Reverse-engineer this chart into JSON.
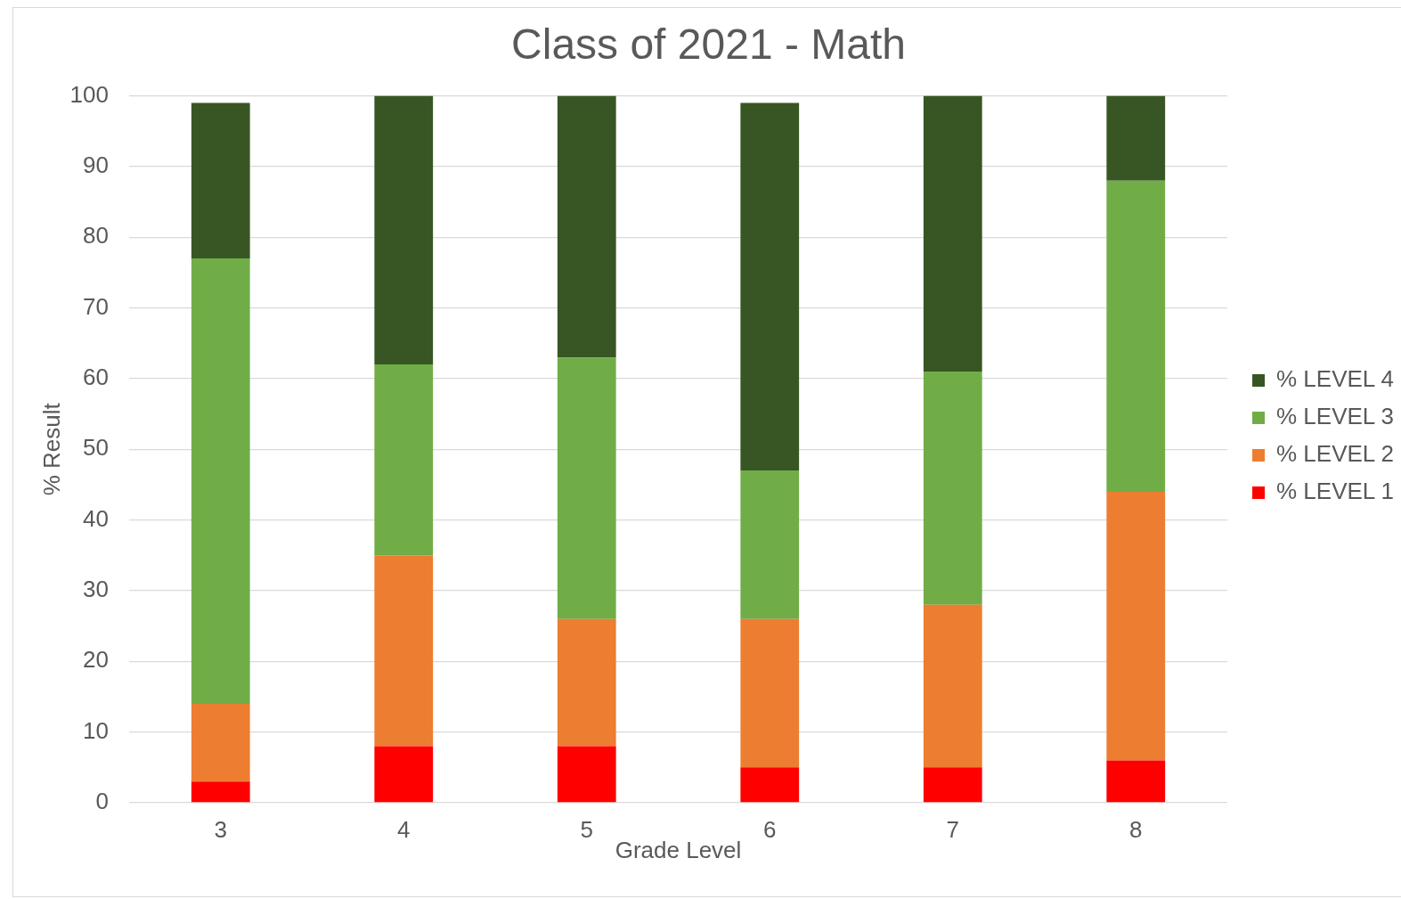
{
  "chart_data": {
    "type": "bar",
    "title": "Class of 2021 - Math",
    "xlabel": "Grade Level",
    "ylabel": "% Result",
    "categories": [
      "3",
      "4",
      "5",
      "6",
      "7",
      "8"
    ],
    "stacked": true,
    "series": [
      {
        "name": "% LEVEL 1",
        "color": "#ff0000",
        "values": [
          3,
          8,
          8,
          5,
          5,
          6
        ]
      },
      {
        "name": "% LEVEL 2",
        "color": "#ed7d31",
        "values": [
          11,
          27,
          18,
          21,
          23,
          38
        ]
      },
      {
        "name": "% LEVEL 3",
        "color": "#70ad47",
        "values": [
          63,
          27,
          37,
          21,
          33,
          44
        ]
      },
      {
        "name": "% LEVEL 4",
        "color": "#375623",
        "values": [
          22,
          38,
          37,
          52,
          39,
          12
        ]
      }
    ],
    "ylim": [
      0,
      100
    ],
    "yticks": [
      0,
      10,
      20,
      30,
      40,
      50,
      60,
      70,
      80,
      90,
      100
    ],
    "grid": "y",
    "legend": "right"
  }
}
